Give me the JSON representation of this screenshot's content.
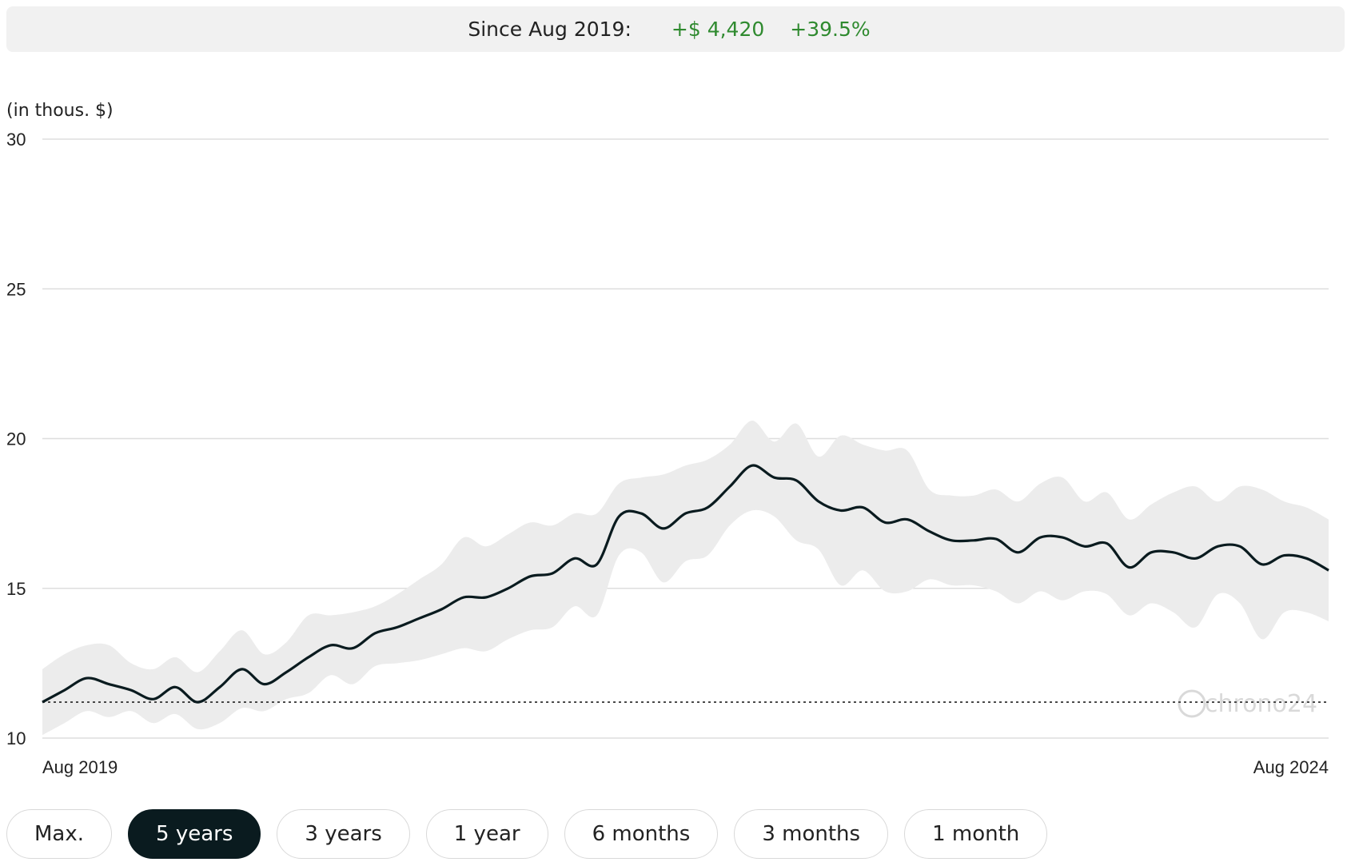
{
  "summary": {
    "label": "Since Aug 2019:",
    "change_abs": "+$ 4,420",
    "change_pct": "+39.5%"
  },
  "colors": {
    "positive": "#2f8a2f",
    "line": "#0a1b1f",
    "band": "#ececec",
    "active_button": "#0a1b1f"
  },
  "chart_data": {
    "type": "line",
    "ylabel": "(in thous. $)",
    "ylim": [
      10,
      30
    ],
    "yticks": [
      10,
      15,
      20,
      25,
      30
    ],
    "x_start_label": "Aug 2019",
    "x_end_label": "Aug 2024",
    "baseline": 11.2,
    "grid": true,
    "watermark": "chrono24",
    "series": [
      {
        "values": [
          11.2,
          11.6,
          12.0,
          11.8,
          11.6,
          11.3,
          11.7,
          11.2,
          11.7,
          12.3,
          11.8,
          12.2,
          12.7,
          13.1,
          13.0,
          13.5,
          13.7,
          14.0,
          14.3,
          14.7,
          14.7,
          15.0,
          15.4,
          15.5,
          16.0,
          15.8,
          17.4,
          17.5,
          17.0,
          17.5,
          17.7,
          18.4,
          19.1,
          18.7,
          18.6,
          17.9,
          17.6,
          17.7,
          17.2,
          17.3,
          16.9,
          16.6,
          16.6,
          16.65,
          16.2,
          16.7,
          16.7,
          16.4,
          16.5,
          15.7,
          16.2,
          16.2,
          16.0,
          16.4,
          16.4,
          15.8,
          16.1,
          16.0,
          15.6
        ]
      },
      {
        "values": [
          12.3,
          12.8,
          13.1,
          13.1,
          12.5,
          12.3,
          12.7,
          12.2,
          12.9,
          13.6,
          12.8,
          13.2,
          14.1,
          14.1,
          14.2,
          14.4,
          14.8,
          15.3,
          15.8,
          16.7,
          16.4,
          16.8,
          17.2,
          17.1,
          17.5,
          17.5,
          18.5,
          18.7,
          18.8,
          19.1,
          19.3,
          19.8,
          20.6,
          19.9,
          20.5,
          19.4,
          20.1,
          19.8,
          19.6,
          19.6,
          18.3,
          18.1,
          18.1,
          18.3,
          17.9,
          18.5,
          18.7,
          17.9,
          18.2,
          17.3,
          17.8,
          18.2,
          18.4,
          17.9,
          18.4,
          18.3,
          17.9,
          17.7,
          17.3
        ]
      },
      {
        "values": [
          10.1,
          10.5,
          10.9,
          10.7,
          10.9,
          10.5,
          10.8,
          10.3,
          10.5,
          11.0,
          10.9,
          11.3,
          11.5,
          12.1,
          11.8,
          12.4,
          12.5,
          12.6,
          12.8,
          13.0,
          12.9,
          13.3,
          13.6,
          13.7,
          14.4,
          14.1,
          16.1,
          16.2,
          15.2,
          15.9,
          16.1,
          17.1,
          17.6,
          17.4,
          16.6,
          16.3,
          15.1,
          15.6,
          14.9,
          14.9,
          15.3,
          15.1,
          15.1,
          14.9,
          14.5,
          14.9,
          14.6,
          14.9,
          14.8,
          14.1,
          14.5,
          14.2,
          13.7,
          14.8,
          14.5,
          13.3,
          14.2,
          14.2,
          13.9
        ]
      }
    ]
  },
  "ranges": [
    {
      "label": "Max.",
      "active": false
    },
    {
      "label": "5 years",
      "active": true
    },
    {
      "label": "3 years",
      "active": false
    },
    {
      "label": "1 year",
      "active": false
    },
    {
      "label": "6 months",
      "active": false
    },
    {
      "label": "3 months",
      "active": false
    },
    {
      "label": "1 month",
      "active": false
    }
  ]
}
